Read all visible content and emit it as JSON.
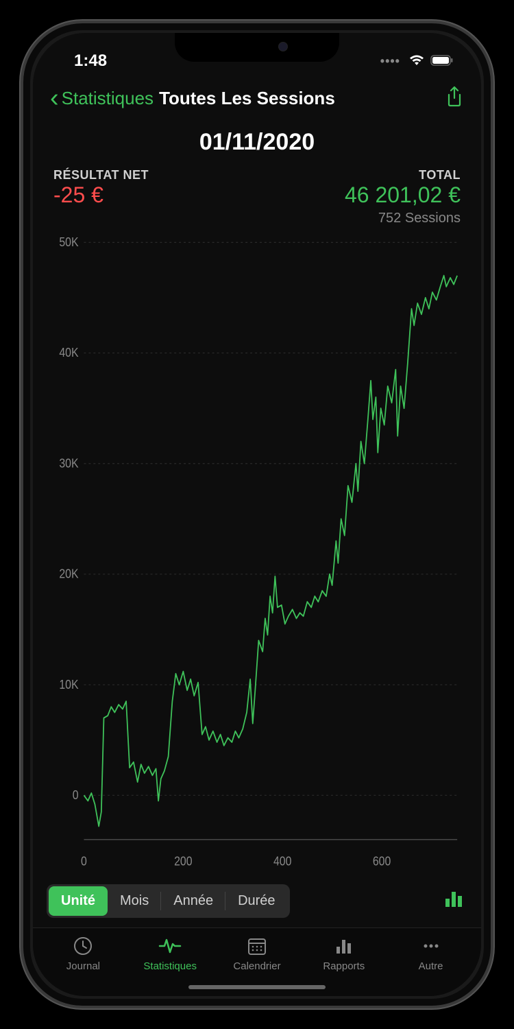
{
  "status": {
    "time": "1:48",
    "dots": "••••"
  },
  "nav": {
    "back_label": "Statistiques",
    "title": "Toutes Les Sessions"
  },
  "header": {
    "date": "01/11/2020",
    "net_label": "RÉSULTAT NET",
    "net_value": "-25 €",
    "total_label": "TOTAL",
    "total_value": "46 201,02 €",
    "sessions": "752 Sessions"
  },
  "chart": {
    "type": "line",
    "line_color": "#3fc25a",
    "background": "#0d0d0d",
    "grid_color": "#2a2a2a",
    "axis_color": "#444",
    "label_color": "#888",
    "label_fontsize": 16,
    "line_width": 1.8,
    "xlim": [
      0,
      752
    ],
    "ylim": [
      -4000,
      50000
    ],
    "y_ticks": [
      0,
      10000,
      20000,
      30000,
      40000,
      50000
    ],
    "y_tick_labels": [
      "0",
      "10K",
      "20K",
      "30K",
      "40K",
      "50K"
    ],
    "x_ticks": [
      0,
      200,
      400,
      600
    ],
    "x_tick_labels": [
      "0",
      "200",
      "400",
      "600"
    ],
    "series": [
      {
        "x": 0,
        "y": 0
      },
      {
        "x": 8,
        "y": -500
      },
      {
        "x": 15,
        "y": 200
      },
      {
        "x": 22,
        "y": -800
      },
      {
        "x": 30,
        "y": -2800
      },
      {
        "x": 35,
        "y": -1500
      },
      {
        "x": 40,
        "y": 7000
      },
      {
        "x": 48,
        "y": 7200
      },
      {
        "x": 55,
        "y": 8000
      },
      {
        "x": 62,
        "y": 7500
      },
      {
        "x": 70,
        "y": 8200
      },
      {
        "x": 78,
        "y": 7800
      },
      {
        "x": 85,
        "y": 8500
      },
      {
        "x": 92,
        "y": 2500
      },
      {
        "x": 100,
        "y": 3000
      },
      {
        "x": 108,
        "y": 1200
      },
      {
        "x": 115,
        "y": 2800
      },
      {
        "x": 122,
        "y": 2000
      },
      {
        "x": 130,
        "y": 2600
      },
      {
        "x": 138,
        "y": 1800
      },
      {
        "x": 145,
        "y": 2400
      },
      {
        "x": 150,
        "y": -500
      },
      {
        "x": 155,
        "y": 1500
      },
      {
        "x": 162,
        "y": 2200
      },
      {
        "x": 170,
        "y": 3500
      },
      {
        "x": 178,
        "y": 8500
      },
      {
        "x": 185,
        "y": 11000
      },
      {
        "x": 192,
        "y": 10000
      },
      {
        "x": 200,
        "y": 11200
      },
      {
        "x": 208,
        "y": 9500
      },
      {
        "x": 215,
        "y": 10500
      },
      {
        "x": 222,
        "y": 9000
      },
      {
        "x": 230,
        "y": 10200
      },
      {
        "x": 238,
        "y": 5500
      },
      {
        "x": 245,
        "y": 6200
      },
      {
        "x": 252,
        "y": 5000
      },
      {
        "x": 260,
        "y": 5800
      },
      {
        "x": 268,
        "y": 4800
      },
      {
        "x": 275,
        "y": 5500
      },
      {
        "x": 282,
        "y": 4500
      },
      {
        "x": 290,
        "y": 5200
      },
      {
        "x": 298,
        "y": 4800
      },
      {
        "x": 305,
        "y": 5800
      },
      {
        "x": 312,
        "y": 5200
      },
      {
        "x": 320,
        "y": 6000
      },
      {
        "x": 328,
        "y": 7500
      },
      {
        "x": 335,
        "y": 10500
      },
      {
        "x": 340,
        "y": 6500
      },
      {
        "x": 345,
        "y": 9500
      },
      {
        "x": 352,
        "y": 14000
      },
      {
        "x": 360,
        "y": 13000
      },
      {
        "x": 365,
        "y": 16000
      },
      {
        "x": 370,
        "y": 14500
      },
      {
        "x": 375,
        "y": 18000
      },
      {
        "x": 380,
        "y": 16500
      },
      {
        "x": 385,
        "y": 19800
      },
      {
        "x": 390,
        "y": 17000
      },
      {
        "x": 398,
        "y": 17200
      },
      {
        "x": 405,
        "y": 15500
      },
      {
        "x": 412,
        "y": 16200
      },
      {
        "x": 420,
        "y": 16800
      },
      {
        "x": 428,
        "y": 16000
      },
      {
        "x": 435,
        "y": 16500
      },
      {
        "x": 442,
        "y": 16200
      },
      {
        "x": 450,
        "y": 17500
      },
      {
        "x": 458,
        "y": 17000
      },
      {
        "x": 465,
        "y": 18000
      },
      {
        "x": 472,
        "y": 17500
      },
      {
        "x": 480,
        "y": 18500
      },
      {
        "x": 488,
        "y": 18000
      },
      {
        "x": 495,
        "y": 20000
      },
      {
        "x": 500,
        "y": 19000
      },
      {
        "x": 508,
        "y": 23000
      },
      {
        "x": 512,
        "y": 21000
      },
      {
        "x": 518,
        "y": 25000
      },
      {
        "x": 525,
        "y": 23500
      },
      {
        "x": 532,
        "y": 28000
      },
      {
        "x": 540,
        "y": 26500
      },
      {
        "x": 548,
        "y": 30000
      },
      {
        "x": 552,
        "y": 27500
      },
      {
        "x": 558,
        "y": 32000
      },
      {
        "x": 565,
        "y": 30000
      },
      {
        "x": 572,
        "y": 34000
      },
      {
        "x": 578,
        "y": 37500
      },
      {
        "x": 582,
        "y": 34000
      },
      {
        "x": 588,
        "y": 36000
      },
      {
        "x": 592,
        "y": 31000
      },
      {
        "x": 598,
        "y": 35000
      },
      {
        "x": 605,
        "y": 33500
      },
      {
        "x": 612,
        "y": 37000
      },
      {
        "x": 620,
        "y": 35500
      },
      {
        "x": 628,
        "y": 38500
      },
      {
        "x": 632,
        "y": 32500
      },
      {
        "x": 638,
        "y": 37000
      },
      {
        "x": 645,
        "y": 35000
      },
      {
        "x": 652,
        "y": 39000
      },
      {
        "x": 660,
        "y": 44000
      },
      {
        "x": 665,
        "y": 42500
      },
      {
        "x": 672,
        "y": 44500
      },
      {
        "x": 680,
        "y": 43500
      },
      {
        "x": 688,
        "y": 45000
      },
      {
        "x": 695,
        "y": 44000
      },
      {
        "x": 702,
        "y": 45500
      },
      {
        "x": 710,
        "y": 44800
      },
      {
        "x": 718,
        "y": 46000
      },
      {
        "x": 725,
        "y": 47000
      },
      {
        "x": 730,
        "y": 46000
      },
      {
        "x": 738,
        "y": 46800
      },
      {
        "x": 745,
        "y": 46200
      },
      {
        "x": 752,
        "y": 47000
      }
    ]
  },
  "segmented": {
    "items": [
      "Unité",
      "Mois",
      "Année",
      "Durée"
    ],
    "active_index": 0
  },
  "tabs": {
    "items": [
      {
        "label": "Journal",
        "icon": "clock"
      },
      {
        "label": "Statistiques",
        "icon": "pulse"
      },
      {
        "label": "Calendrier",
        "icon": "calendar"
      },
      {
        "label": "Rapports",
        "icon": "bars"
      },
      {
        "label": "Autre",
        "icon": "more"
      }
    ],
    "active_index": 1
  },
  "colors": {
    "accent": "#3fc25a",
    "negative": "#ff4d4d",
    "background": "#0d0d0d",
    "text_primary": "#ffffff",
    "text_secondary": "#888888"
  }
}
